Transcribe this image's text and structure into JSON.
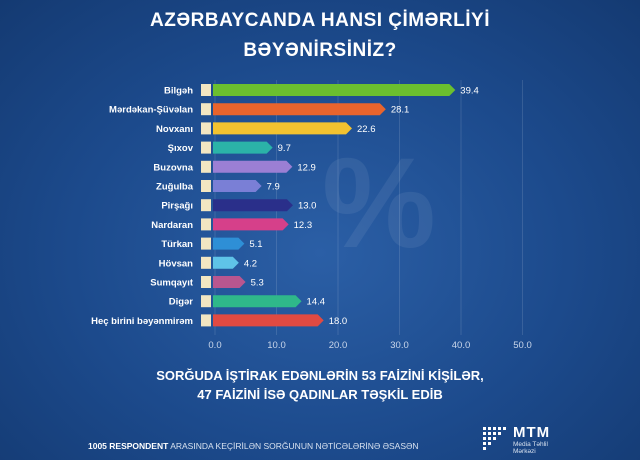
{
  "title": {
    "line1": "AZƏRBAYCANDA HANSI ÇİMƏRLİYİ",
    "line2": "BƏYƏNİRSİNİZ?"
  },
  "watermark": "%",
  "chart_data": {
    "type": "bar",
    "orientation": "horizontal",
    "categories": [
      "Bilgəh",
      "Mərdəkan-Şüvəlan",
      "Novxanı",
      "Şıxov",
      "Buzovna",
      "Zuğulba",
      "Pirşağı",
      "Nardaran",
      "Türkan",
      "Hövsan",
      "Sumqayıt",
      "Digər",
      "Heç birini bəyənmirəm"
    ],
    "values": [
      39.4,
      28.1,
      22.6,
      9.7,
      12.9,
      7.9,
      13.0,
      12.3,
      5.1,
      4.2,
      5.3,
      14.4,
      18.0
    ],
    "value_labels": [
      "39.4",
      "28.1",
      "22.6",
      "9.7",
      "12.9",
      "7.9",
      "13.0",
      "12.3",
      "5.1",
      "4.2",
      "5.3",
      "14.4",
      "18.0"
    ],
    "colors": [
      "#6bbf2f",
      "#e8642d",
      "#f2c230",
      "#2bb3a8",
      "#9b7fd4",
      "#7a7fd6",
      "#2a2f8a",
      "#d6408a",
      "#2e8fd6",
      "#5fc3e8",
      "#b8568f",
      "#2fb88a",
      "#e04a42"
    ],
    "xlim": [
      0,
      50
    ],
    "xticks": [
      "0.0",
      "10.0",
      "20.0",
      "30.0",
      "40.0",
      "50.0"
    ],
    "grid": true
  },
  "note": {
    "line1": "SORĞUDA İŞTİRAK EDƏNLƏRİN 53 FAİZİNİ KİŞİLƏR,",
    "line2": "47 FAİZİNİ İSƏ QADINLAR TƏŞKİL EDİB"
  },
  "footer": {
    "bold": "1005 RESPONDENT",
    "rest": " ARASINDA KEÇİRİLƏN SORĞUNUN NƏTİCƏLƏRİNƏ ƏSASƏN"
  },
  "logo": {
    "name": "MTM",
    "sub1": "Media Təhlil",
    "sub2": "Mərkəzi"
  }
}
